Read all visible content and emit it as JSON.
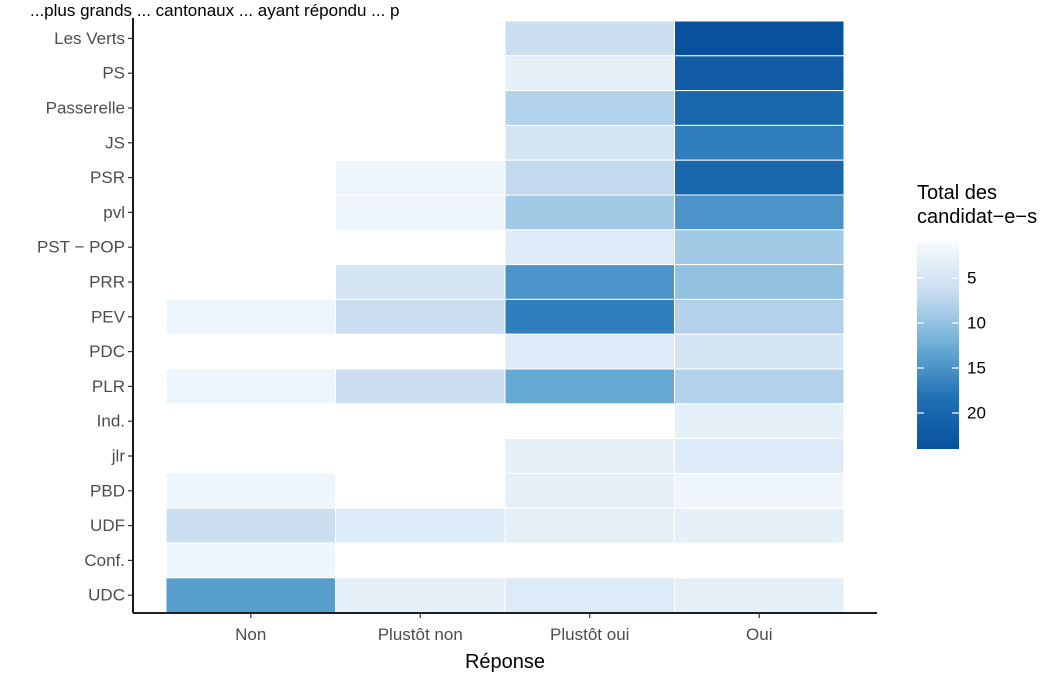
{
  "chart_data": {
    "type": "heatmap",
    "title_fragment": "...plus grands ... cantonaux ... ayant répondu ... p",
    "xlabel": "Réponse",
    "ylabel": "",
    "x_categories": [
      "Non",
      "Plustôt non",
      "Plustôt oui",
      "Oui"
    ],
    "y_categories": [
      "Les Verts",
      "PS",
      "Passerelle",
      "JS",
      "PSR",
      "pvl",
      "PST − POP",
      "PRR",
      "PEV",
      "PDC",
      "PLR",
      "Ind.",
      "jlr",
      "PBD",
      "UDF",
      "Conf.",
      "UDC"
    ],
    "values": [
      [
        null,
        null,
        6,
        24
      ],
      [
        null,
        null,
        3,
        22
      ],
      [
        null,
        null,
        8,
        20
      ],
      [
        null,
        null,
        5,
        17
      ],
      [
        null,
        2,
        7,
        20
      ],
      [
        null,
        2,
        9,
        15
      ],
      [
        null,
        null,
        4,
        9
      ],
      [
        null,
        5,
        15,
        10
      ],
      [
        2,
        6,
        17,
        8
      ],
      [
        null,
        null,
        4,
        5
      ],
      [
        2,
        6,
        13,
        8
      ],
      [
        null,
        null,
        null,
        3
      ],
      [
        null,
        null,
        3,
        4
      ],
      [
        2,
        null,
        3,
        2
      ],
      [
        6,
        4,
        3,
        3
      ],
      [
        2,
        null,
        null,
        null
      ],
      [
        14,
        3,
        4,
        3
      ]
    ],
    "color_scale": {
      "low": "#f7fbff",
      "high": "#08519c",
      "min": 1,
      "max": 24
    },
    "legend": {
      "title_lines": [
        "Total des",
        "candidat−e−s"
      ],
      "ticks": [
        5,
        10,
        15,
        20
      ],
      "tick_labels": [
        "5",
        "10",
        "15",
        "20"
      ],
      "placement": "right"
    },
    "grid": false
  }
}
